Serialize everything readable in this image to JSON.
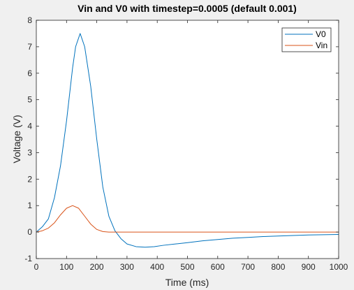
{
  "chart_data": {
    "type": "line",
    "title": "Vin and V0 with timestep=0.0005 (default 0.001)",
    "xlabel": "Time (ms)",
    "ylabel": "Voltage (V)",
    "xlim": [
      0,
      1000
    ],
    "ylim": [
      -1,
      8
    ],
    "xticks": [
      0,
      100,
      200,
      300,
      400,
      500,
      600,
      700,
      800,
      900,
      1000
    ],
    "yticks": [
      -1,
      0,
      1,
      2,
      3,
      4,
      5,
      6,
      7,
      8
    ],
    "grid": false,
    "legend_position": "top-right",
    "series": [
      {
        "name": "V0",
        "color": "#0072bd",
        "x": [
          0,
          20,
          40,
          60,
          80,
          100,
          120,
          130,
          145,
          160,
          180,
          200,
          220,
          240,
          260,
          280,
          300,
          330,
          360,
          390,
          420,
          460,
          500,
          550,
          600,
          650,
          700,
          750,
          800,
          850,
          900,
          950,
          1000
        ],
        "y": [
          0,
          0.2,
          0.5,
          1.3,
          2.5,
          4.2,
          6.2,
          7.0,
          7.5,
          7.0,
          5.5,
          3.5,
          1.7,
          0.6,
          0.05,
          -0.25,
          -0.45,
          -0.55,
          -0.57,
          -0.55,
          -0.5,
          -0.45,
          -0.4,
          -0.33,
          -0.28,
          -0.23,
          -0.2,
          -0.17,
          -0.15,
          -0.13,
          -0.11,
          -0.1,
          -0.09
        ]
      },
      {
        "name": "Vin",
        "color": "#d95319",
        "x": [
          0,
          20,
          40,
          60,
          80,
          100,
          120,
          140,
          160,
          180,
          200,
          220,
          240,
          260,
          280,
          300,
          400,
          500,
          600,
          700,
          800,
          900,
          1000
        ],
        "y": [
          0,
          0.05,
          0.15,
          0.35,
          0.65,
          0.9,
          1.0,
          0.9,
          0.6,
          0.3,
          0.1,
          0.02,
          0.0,
          0.0,
          0.0,
          0.0,
          0.0,
          0.0,
          0.0,
          0.0,
          0.0,
          0.0,
          0.0
        ]
      }
    ]
  }
}
